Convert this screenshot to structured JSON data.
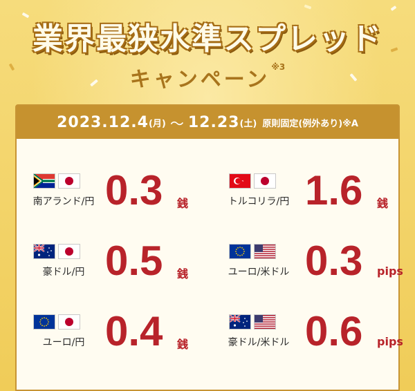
{
  "campaign": {
    "title": "業界最狭水準スプレッド",
    "subtitle": "キャンペーン",
    "subtitle_note": "※3"
  },
  "period": {
    "start": "2023.12.4",
    "start_day": "(月)",
    "separator": "～",
    "end": "12.23",
    "end_day": "(土)",
    "condition": "原則固定(例外あり)※A"
  },
  "spreads": [
    {
      "pair": "南アランド/円",
      "value": "0.3",
      "unit": "銭",
      "flags": [
        "za-flag-icon",
        "jp-flag-icon"
      ]
    },
    {
      "pair": "トルコリラ/円",
      "value": "1.6",
      "unit": "銭",
      "flags": [
        "tr-flag-icon",
        "jp-flag-icon"
      ]
    },
    {
      "pair": "豪ドル/円",
      "value": "0.5",
      "unit": "銭",
      "flags": [
        "au-flag-icon",
        "jp-flag-icon"
      ]
    },
    {
      "pair": "ユーロ/米ドル",
      "value": "0.3",
      "unit": "pips",
      "flags": [
        "eu-flag-icon",
        "us-flag-icon"
      ]
    },
    {
      "pair": "ユーロ/円",
      "value": "0.4",
      "unit": "銭",
      "flags": [
        "eu-flag-icon",
        "jp-flag-icon"
      ]
    },
    {
      "pair": "豪ドル/米ドル",
      "value": "0.6",
      "unit": "pips",
      "flags": [
        "au-flag-icon",
        "us-flag-icon"
      ]
    }
  ],
  "colors": {
    "background": "#f1cf5e",
    "header": "#c6922f",
    "value": "#b8232a",
    "panel": "#fffcf1"
  }
}
